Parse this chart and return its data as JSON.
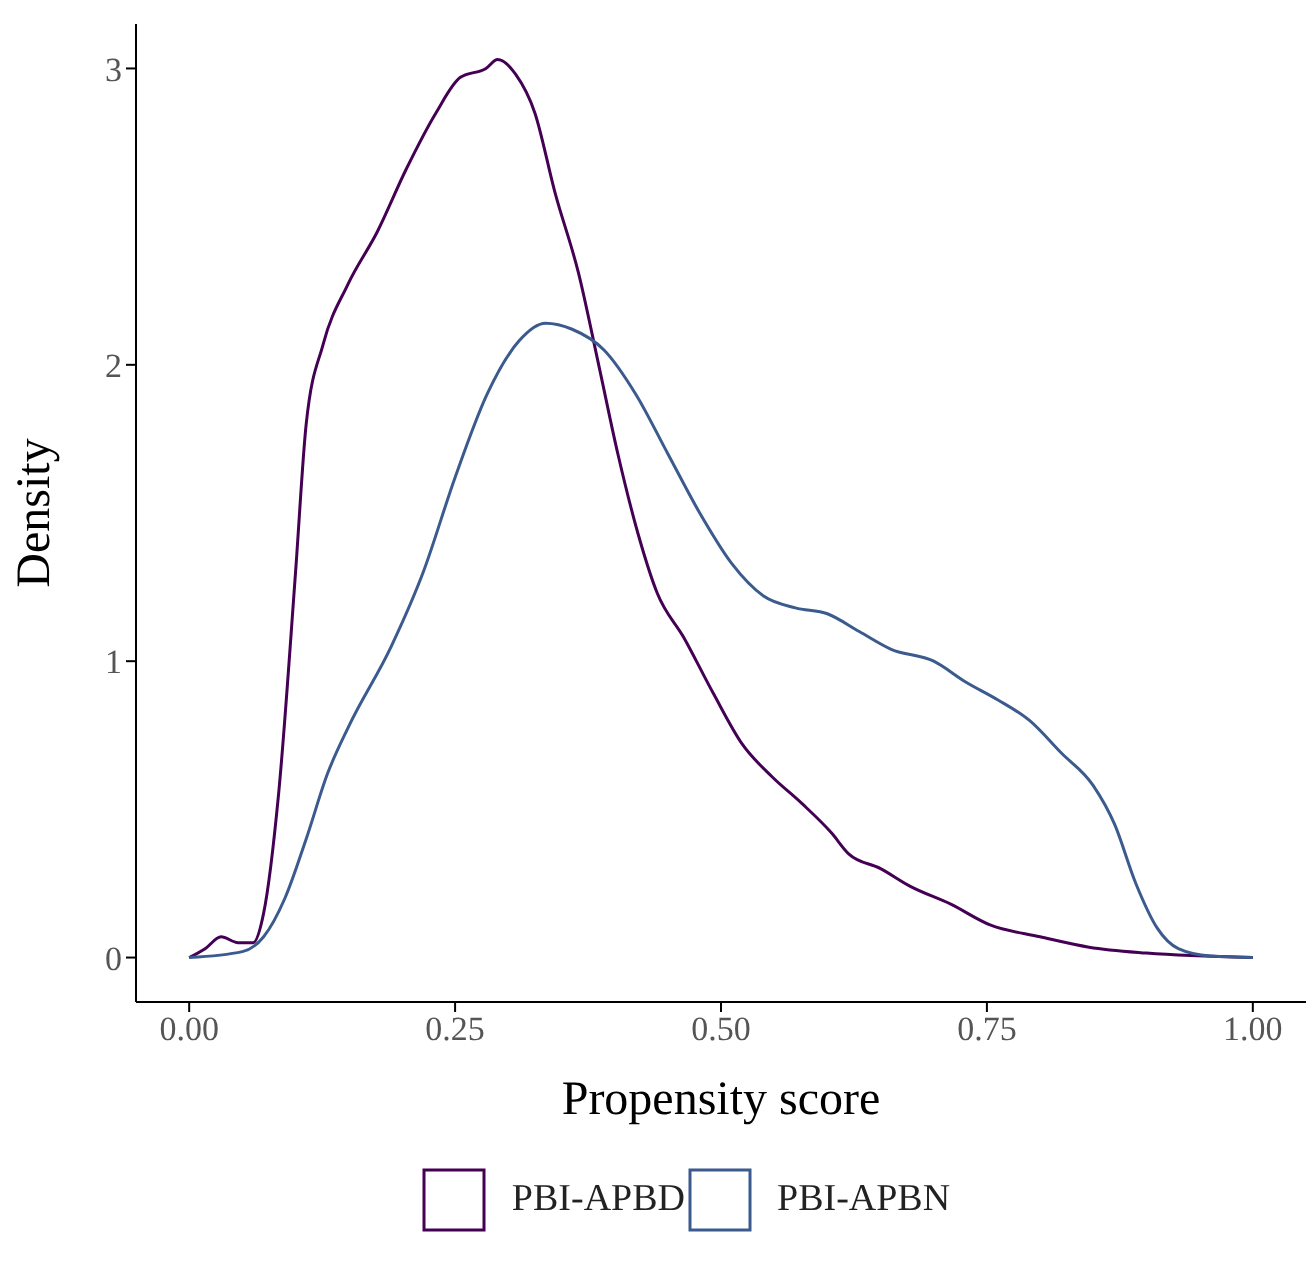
{
  "chart_data": {
    "type": "line",
    "xlabel": "Propensity score",
    "ylabel": "Density",
    "xlim": [
      -0.05,
      1.05
    ],
    "ylim": [
      -0.15,
      3.15
    ],
    "xticks": [
      {
        "value": 0,
        "label": "0.00"
      },
      {
        "value": 0.25,
        "label": "0.25"
      },
      {
        "value": 0.5,
        "label": "0.50"
      },
      {
        "value": 0.75,
        "label": "0.75"
      },
      {
        "value": 1,
        "label": "1.00"
      }
    ],
    "yticks": [
      0,
      1,
      2,
      3
    ],
    "grid": false,
    "legend": "bottom",
    "marker": "none",
    "line_style": "solid",
    "series": [
      {
        "name": "PBI-APBD",
        "color": "#440154",
        "x": [
          0,
          0.015,
          0.03,
          0.046,
          0.06,
          0.07,
          0.084,
          0.1,
          0.11,
          0.126,
          0.149,
          0.177,
          0.204,
          0.232,
          0.255,
          0.279,
          0.29,
          0.307,
          0.325,
          0.344,
          0.366,
          0.385,
          0.403,
          0.422,
          0.44,
          0.465,
          0.493,
          0.52,
          0.548,
          0.576,
          0.604,
          0.62,
          0.65,
          0.678,
          0.716,
          0.753,
          0.8,
          0.846,
          0.9,
          1.0
        ],
        "values": [
          0,
          0.03,
          0.07,
          0.05,
          0.05,
          0.15,
          0.55,
          1.3,
          1.8,
          2.07,
          2.27,
          2.45,
          2.66,
          2.85,
          2.97,
          3.0,
          3.03,
          2.98,
          2.85,
          2.58,
          2.31,
          2.0,
          1.7,
          1.43,
          1.23,
          1.08,
          0.89,
          0.72,
          0.61,
          0.52,
          0.42,
          0.35,
          0.3,
          0.24,
          0.18,
          0.11,
          0.07,
          0.035,
          0.015,
          0
        ]
      },
      {
        "name": "PBI-APBN",
        "color": "#3b5b8e",
        "x": [
          0,
          0.05,
          0.07,
          0.09,
          0.11,
          0.13,
          0.15,
          0.19,
          0.22,
          0.25,
          0.28,
          0.31,
          0.335,
          0.36,
          0.39,
          0.42,
          0.45,
          0.48,
          0.51,
          0.54,
          0.57,
          0.6,
          0.63,
          0.66,
          0.7,
          0.73,
          0.76,
          0.79,
          0.82,
          0.85,
          0.87,
          0.89,
          0.91,
          0.93,
          0.96,
          1.0
        ],
        "values": [
          0,
          0.02,
          0.07,
          0.2,
          0.4,
          0.62,
          0.78,
          1.05,
          1.3,
          1.62,
          1.9,
          2.08,
          2.14,
          2.12,
          2.05,
          1.9,
          1.7,
          1.5,
          1.33,
          1.22,
          1.18,
          1.16,
          1.1,
          1.04,
          1.0,
          0.93,
          0.87,
          0.8,
          0.69,
          0.58,
          0.45,
          0.25,
          0.1,
          0.03,
          0.005,
          0
        ]
      }
    ]
  }
}
